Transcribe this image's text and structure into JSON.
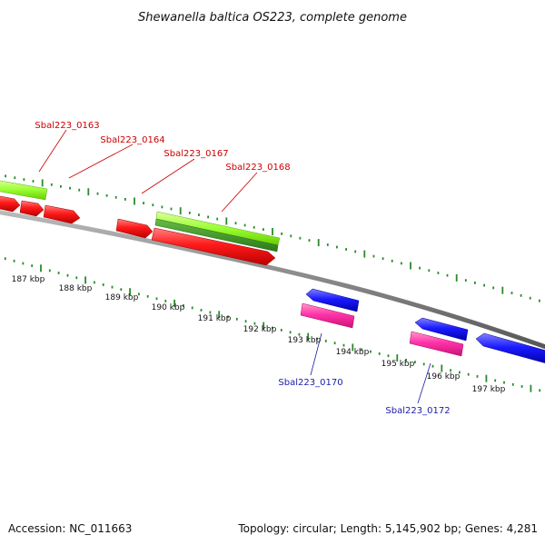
{
  "title": "Shewanella baltica OS223, complete genome",
  "footer": {
    "accession": "Accession: NC_011663",
    "summary": "Topology: circular; Length: 5,145,902 bp; Genes: 4,281"
  },
  "colors": {
    "backbone": "#888888",
    "tick": "#2a8a2a",
    "forward_cds": "#ff1a1a",
    "reverse_cds": "#1a1aff",
    "forward_gene": "#99ff33",
    "forward_gene_dark": "#3a9a2a",
    "reverse_gene": "#ff44aa",
    "label_forward": "#cc0000",
    "label_reverse": "#1a1aaa"
  },
  "kbp_labels": [
    "187 kbp",
    "188 kbp",
    "189 kbp",
    "190 kbp",
    "191 kbp",
    "192 kbp",
    "193 kbp",
    "194 kbp",
    "195 kbp",
    "196 kbp",
    "197 kbp"
  ],
  "gene_labels": {
    "forward": [
      "Sbal223_0163",
      "Sbal223_0164",
      "Sbal223_0167",
      "Sbal223_0168"
    ],
    "reverse": [
      "Sbal223_0170",
      "Sbal223_0172"
    ]
  }
}
